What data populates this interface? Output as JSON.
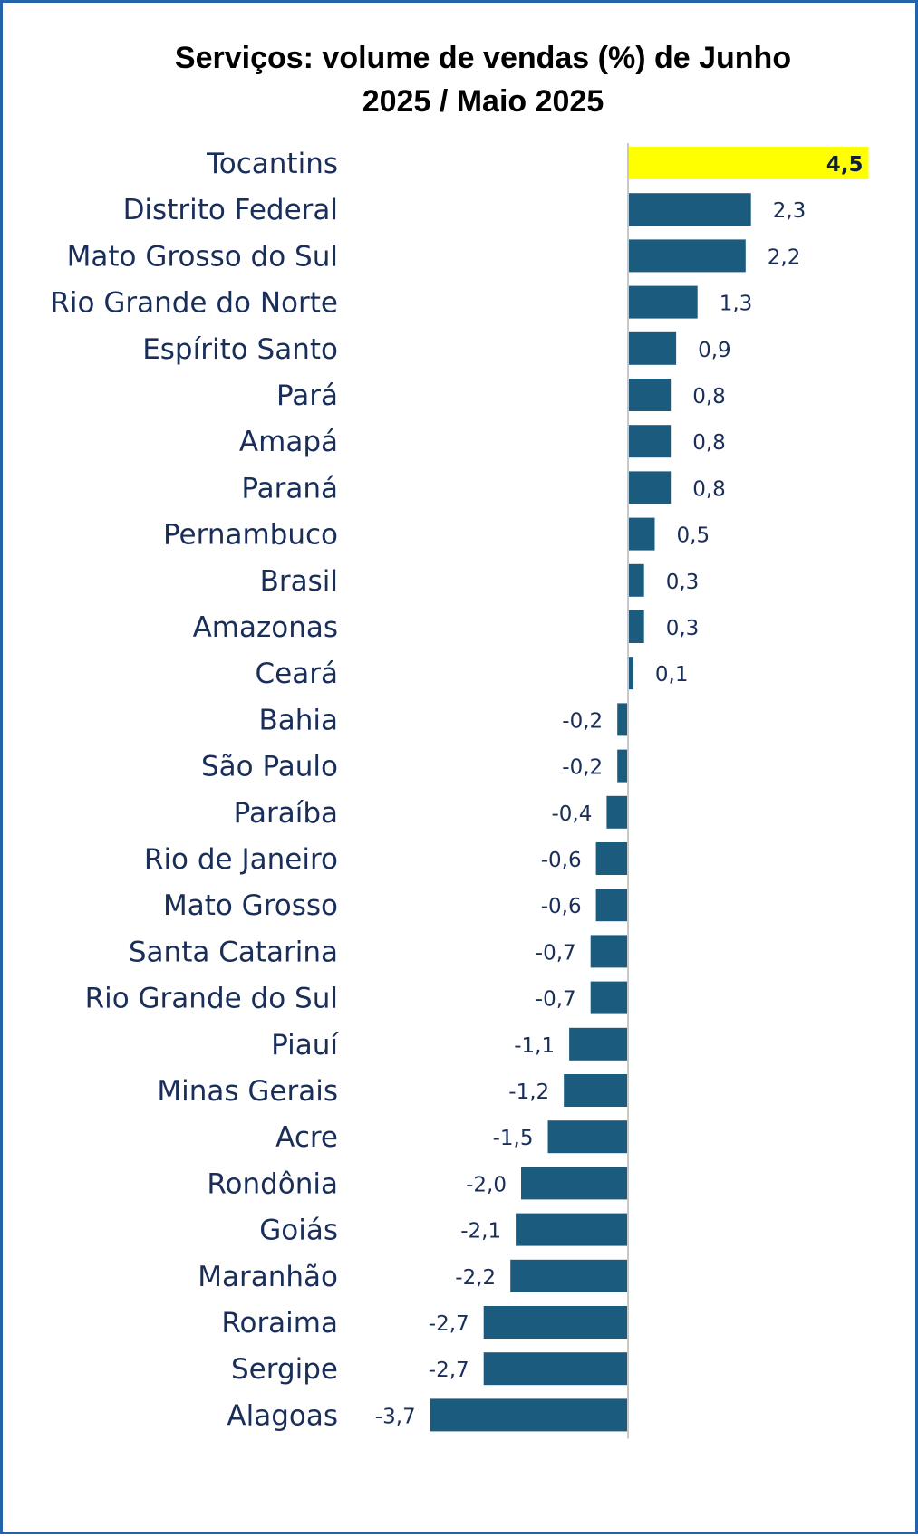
{
  "chart_data": {
    "type": "bar",
    "orientation": "horizontal",
    "title": [
      "Serviços: volume de vendas (%) de Junho",
      "2025 / Maio 2025"
    ],
    "categories": [
      "Tocantins",
      "Distrito Federal",
      "Mato Grosso do Sul",
      "Rio Grande do Norte",
      "Espírito Santo",
      "Pará",
      "Amapá",
      "Paraná",
      "Pernambuco",
      "Brasil",
      "Amazonas",
      "Ceará",
      "Bahia",
      "São Paulo",
      "Paraíba",
      "Rio de Janeiro",
      "Mato Grosso",
      "Santa Catarina",
      "Rio Grande do Sul",
      "Piauí",
      "Minas Gerais",
      "Acre",
      "Rondônia",
      "Goiás",
      "Maranhão",
      "Roraima",
      "Sergipe",
      "Alagoas"
    ],
    "values": [
      4.5,
      2.3,
      2.2,
      1.3,
      0.9,
      0.8,
      0.8,
      0.8,
      0.5,
      0.3,
      0.3,
      0.1,
      -0.2,
      -0.2,
      -0.4,
      -0.6,
      -0.6,
      -0.7,
      -0.7,
      -1.1,
      -1.2,
      -1.5,
      -2.0,
      -2.1,
      -2.2,
      -2.7,
      -2.7,
      -3.7
    ],
    "value_labels": [
      "4,5",
      "2,3",
      "2,2",
      "1,3",
      "0,9",
      "0,8",
      "0,8",
      "0,8",
      "0,5",
      "0,3",
      "0,3",
      "0,1",
      "-0,2",
      "-0,2",
      "-0,4",
      "-0,6",
      "-0,6",
      "-0,7",
      "-0,7",
      "-1,1",
      "-1,2",
      "-1,5",
      "-2,0",
      "-2,1",
      "-2,2",
      "-2,7",
      "-2,7",
      "-3,7"
    ],
    "highlight_index": 0,
    "colors": {
      "bar": "#1b5c7e",
      "highlight": "#ffff00",
      "axis": "#c8c8c8",
      "frame": "#2563a8"
    },
    "xlabel": "",
    "ylabel": "",
    "xlim": [
      -3.7,
      4.5
    ],
    "grid": false
  }
}
